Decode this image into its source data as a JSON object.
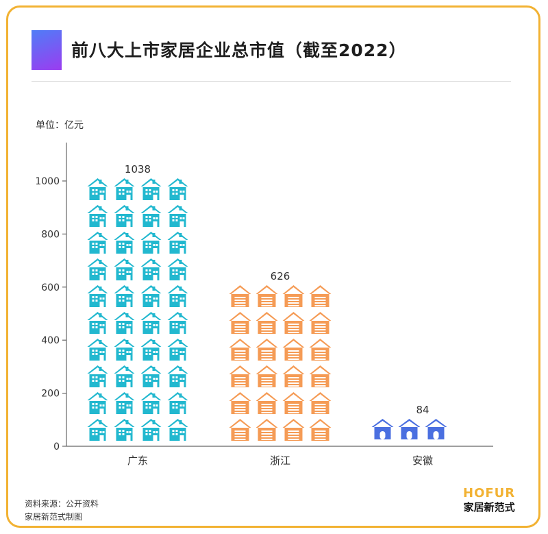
{
  "header": {
    "title": "前八大上市家居企业总市值（截至2022）",
    "unit_label": "单位：亿元"
  },
  "footer": {
    "source_line": "资料来源：公开资料",
    "credit_line": "家居新范式制图",
    "logo_en": "HOFUR",
    "logo_cn": "家居新范式"
  },
  "colors": {
    "border": "#f2b233",
    "guangdong": "#22b8cf",
    "zhejiang": "#f59b55",
    "anhui": "#4a6fe0"
  },
  "chart_data": {
    "type": "bar",
    "title": "前八大上市家居企业总市值（截至2022）",
    "ylabel": "单位：亿元",
    "ylim": [
      0,
      1100
    ],
    "yticks": [
      0,
      200,
      400,
      600,
      800,
      1000
    ],
    "categories": [
      "广东",
      "浙江",
      "安徽"
    ],
    "values": [
      1038,
      626,
      84
    ],
    "value_labels": [
      "1038",
      "626",
      "84"
    ],
    "icons": [
      "house-building-icon",
      "house-garage-icon",
      "house-simple-icon"
    ],
    "grid": false,
    "legend": "none"
  }
}
